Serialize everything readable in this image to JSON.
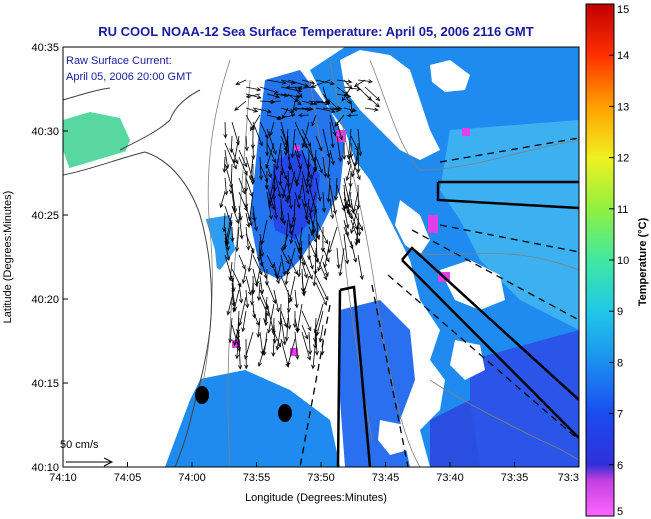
{
  "chart_data": {
    "type": "heatmap",
    "title": "RU COOL  NOAA-12  Sea Surface Temperature:  April 05, 2006 2116 GMT",
    "annotation_line1": "Raw Surface Current:",
    "annotation_line2": "April 05, 2006 20:00 GMT",
    "xlabel": "Longitude (Degrees:Minutes)",
    "ylabel": "Latitude (Degrees:Minutes)",
    "colorbar_label": "Temperature (°C)",
    "scale_label": "50 cm/s",
    "x_ticks": [
      "74:10",
      "74:05",
      "74:00",
      "73:55",
      "73:50",
      "73:45",
      "73:40",
      "73:35",
      "73:3"
    ],
    "y_ticks": [
      "40:35",
      "40:30",
      "40:25",
      "40:20",
      "40:15",
      "40:10"
    ],
    "colorbar_ticks": [
      "5",
      "6",
      "7",
      "8",
      "9",
      "10",
      "11",
      "12",
      "13",
      "14",
      "15"
    ],
    "colorbar_range": [
      5,
      15
    ],
    "colors": {
      "cold": "#ff00ff",
      "mid": "#1e90ff",
      "warm": "#ff0000",
      "title": "#1a1aa0",
      "land": "#ffffff"
    }
  }
}
